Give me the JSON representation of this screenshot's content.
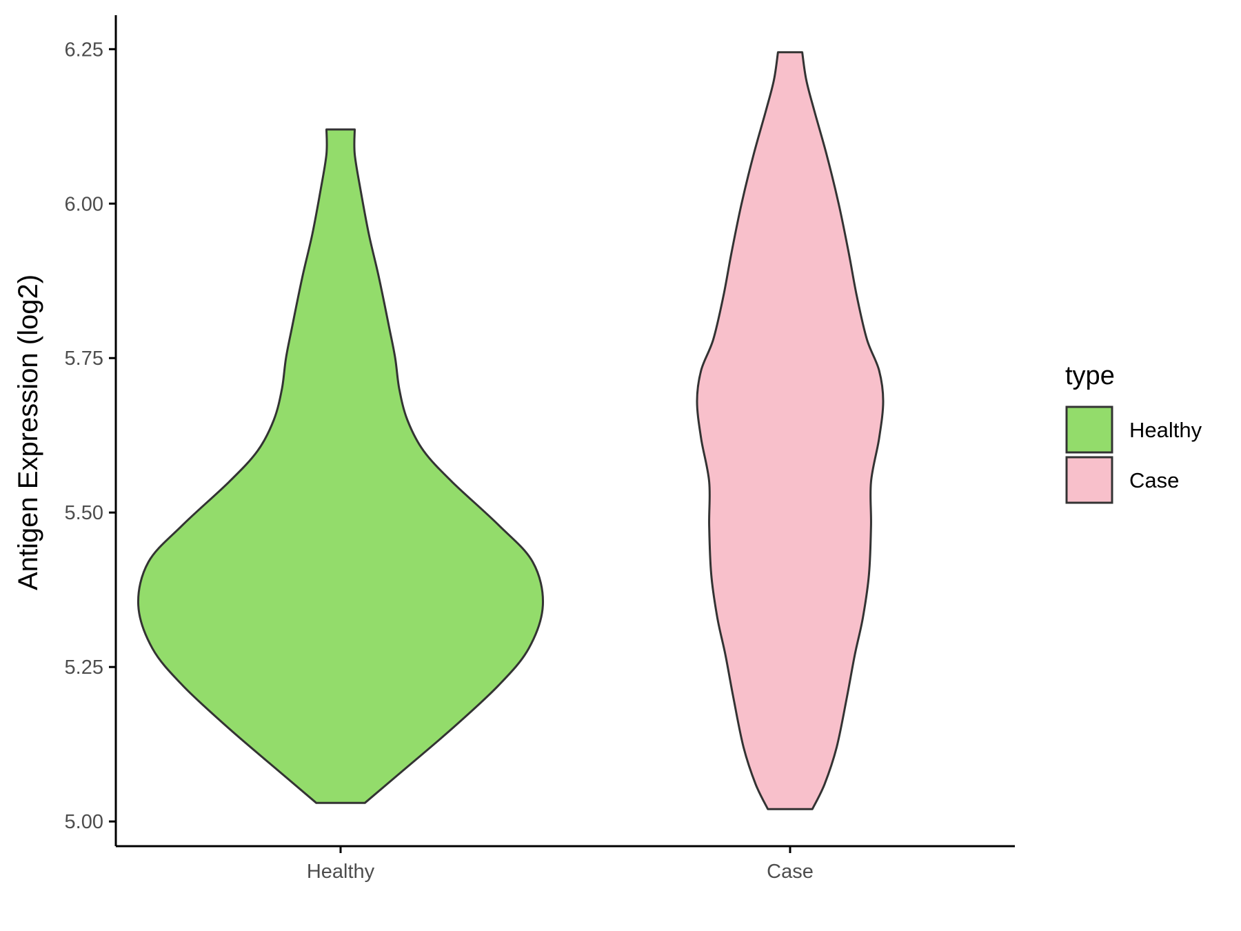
{
  "chart_data": {
    "type": "violin",
    "ylabel": "Antigen Expression (log2)",
    "xlabel": "",
    "title": "",
    "ylim": [
      4.96,
      6.305
    ],
    "yticks": [
      5.0,
      5.25,
      5.5,
      5.75,
      6.0,
      6.25
    ],
    "ytick_labels": [
      "5.00",
      "5.25",
      "5.50",
      "5.75",
      "6.00",
      "6.25"
    ],
    "categories": [
      "Healthy",
      "Case"
    ],
    "grid": false,
    "legend": {
      "title": "type",
      "placement": "right",
      "entries": [
        "Healthy",
        "Case"
      ]
    },
    "series": [
      {
        "name": "Healthy",
        "color": "#93dc6b",
        "min": 5.03,
        "max": 6.12,
        "density": [
          [
            5.03,
            0.12
          ],
          [
            5.08,
            0.3
          ],
          [
            5.15,
            0.55
          ],
          [
            5.22,
            0.78
          ],
          [
            5.28,
            0.93
          ],
          [
            5.35,
            1.0
          ],
          [
            5.42,
            0.95
          ],
          [
            5.48,
            0.78
          ],
          [
            5.55,
            0.55
          ],
          [
            5.6,
            0.41
          ],
          [
            5.65,
            0.33
          ],
          [
            5.7,
            0.29
          ],
          [
            5.75,
            0.27
          ],
          [
            5.8,
            0.24
          ],
          [
            5.88,
            0.19
          ],
          [
            5.95,
            0.14
          ],
          [
            6.02,
            0.1
          ],
          [
            6.08,
            0.07
          ],
          [
            6.12,
            0.07
          ]
        ]
      },
      {
        "name": "Case",
        "color": "#f8c0cb",
        "min": 5.02,
        "max": 6.245,
        "density": [
          [
            5.02,
            0.11
          ],
          [
            5.06,
            0.17
          ],
          [
            5.12,
            0.23
          ],
          [
            5.2,
            0.28
          ],
          [
            5.27,
            0.32
          ],
          [
            5.33,
            0.36
          ],
          [
            5.4,
            0.39
          ],
          [
            5.48,
            0.4
          ],
          [
            5.55,
            0.4
          ],
          [
            5.62,
            0.44
          ],
          [
            5.68,
            0.46
          ],
          [
            5.73,
            0.44
          ],
          [
            5.78,
            0.38
          ],
          [
            5.85,
            0.33
          ],
          [
            5.92,
            0.29
          ],
          [
            6.0,
            0.24
          ],
          [
            6.08,
            0.18
          ],
          [
            6.15,
            0.12
          ],
          [
            6.2,
            0.08
          ],
          [
            6.245,
            0.06
          ]
        ]
      }
    ]
  }
}
